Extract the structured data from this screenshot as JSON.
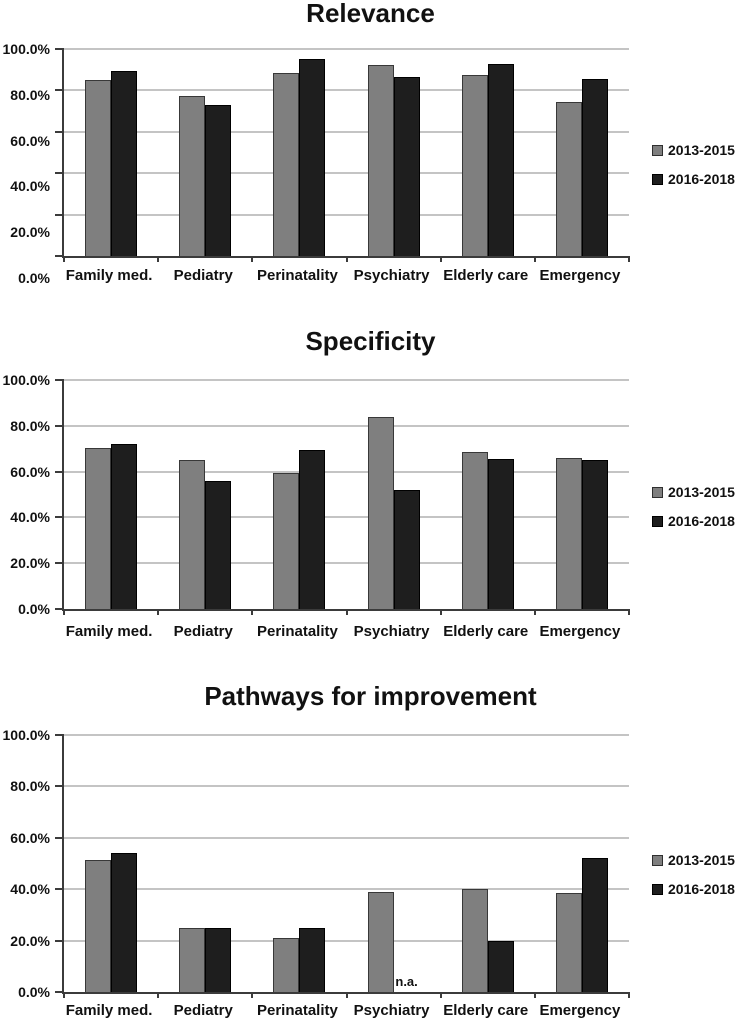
{
  "page": {
    "background": "#ffffff"
  },
  "colors": {
    "series_2013_2015": "#7f7f7f",
    "series_2016_2018": "#1e1e1e",
    "gridline": "#8a8a8a",
    "axis": "#3b3b3b",
    "text": "#111111"
  },
  "na_text": "n.a.",
  "legend": {
    "items": [
      {
        "label": "2013-2015",
        "color": "#7f7f7f"
      },
      {
        "label": "2016-2018",
        "color": "#1e1e1e"
      }
    ]
  },
  "chart_data": [
    {
      "type": "bar",
      "title": "Relevance",
      "categories": [
        "Family med.",
        "Pediatry",
        "Perinatality",
        "Psychiatry",
        "Elderly care",
        "Emergency"
      ],
      "series": [
        {
          "name": "2013-2015",
          "values": [
            85,
            77.5,
            88.5,
            92.5,
            87.5,
            74.5
          ]
        },
        {
          "name": "2016-2018",
          "values": [
            89.5,
            73,
            95,
            86.5,
            93,
            85.5
          ]
        }
      ],
      "ylim": [
        0,
        100
      ],
      "y_tick_labels": [
        "100.0%",
        "80.0%",
        "60.0%",
        "40.0%",
        "20.0%",
        "0.0%"
      ],
      "grid": true,
      "legend_position": "right",
      "annotations": []
    },
    {
      "type": "bar",
      "title": "Specificity",
      "categories": [
        "Family med.",
        "Pediatry",
        "Perinatality",
        "Psychiatry",
        "Elderly care",
        "Emergency"
      ],
      "series": [
        {
          "name": "2013-2015",
          "values": [
            70.5,
            65,
            59.5,
            84,
            68.5,
            66
          ]
        },
        {
          "name": "2016-2018",
          "values": [
            72,
            56,
            69.5,
            52,
            65.5,
            65
          ]
        }
      ],
      "ylim": [
        0,
        100
      ],
      "y_tick_labels": [
        "100.0%",
        "80.0%",
        "60.0%",
        "40.0%",
        "20.0%",
        "0.0%"
      ],
      "grid": true,
      "legend_position": "right",
      "annotations": []
    },
    {
      "type": "bar",
      "title": "Pathways for improvement",
      "categories": [
        "Family med.",
        "Pediatry",
        "Perinatality",
        "Psychiatry",
        "Elderly care",
        "Emergency"
      ],
      "series": [
        {
          "name": "2013-2015",
          "values": [
            51.5,
            25,
            21,
            39,
            40,
            38.5
          ]
        },
        {
          "name": "2016-2018",
          "values": [
            54,
            25,
            25,
            null,
            20,
            52
          ]
        }
      ],
      "ylim": [
        0,
        100
      ],
      "y_tick_labels": [
        "100.0%",
        "80.0%",
        "60.0%",
        "40.0%",
        "20.0%",
        "0.0%"
      ],
      "grid": true,
      "legend_position": "right",
      "annotations": [
        {
          "text": "n.a.",
          "category": "Psychiatry",
          "series": "2016-2018",
          "position": "baseline"
        }
      ]
    }
  ]
}
